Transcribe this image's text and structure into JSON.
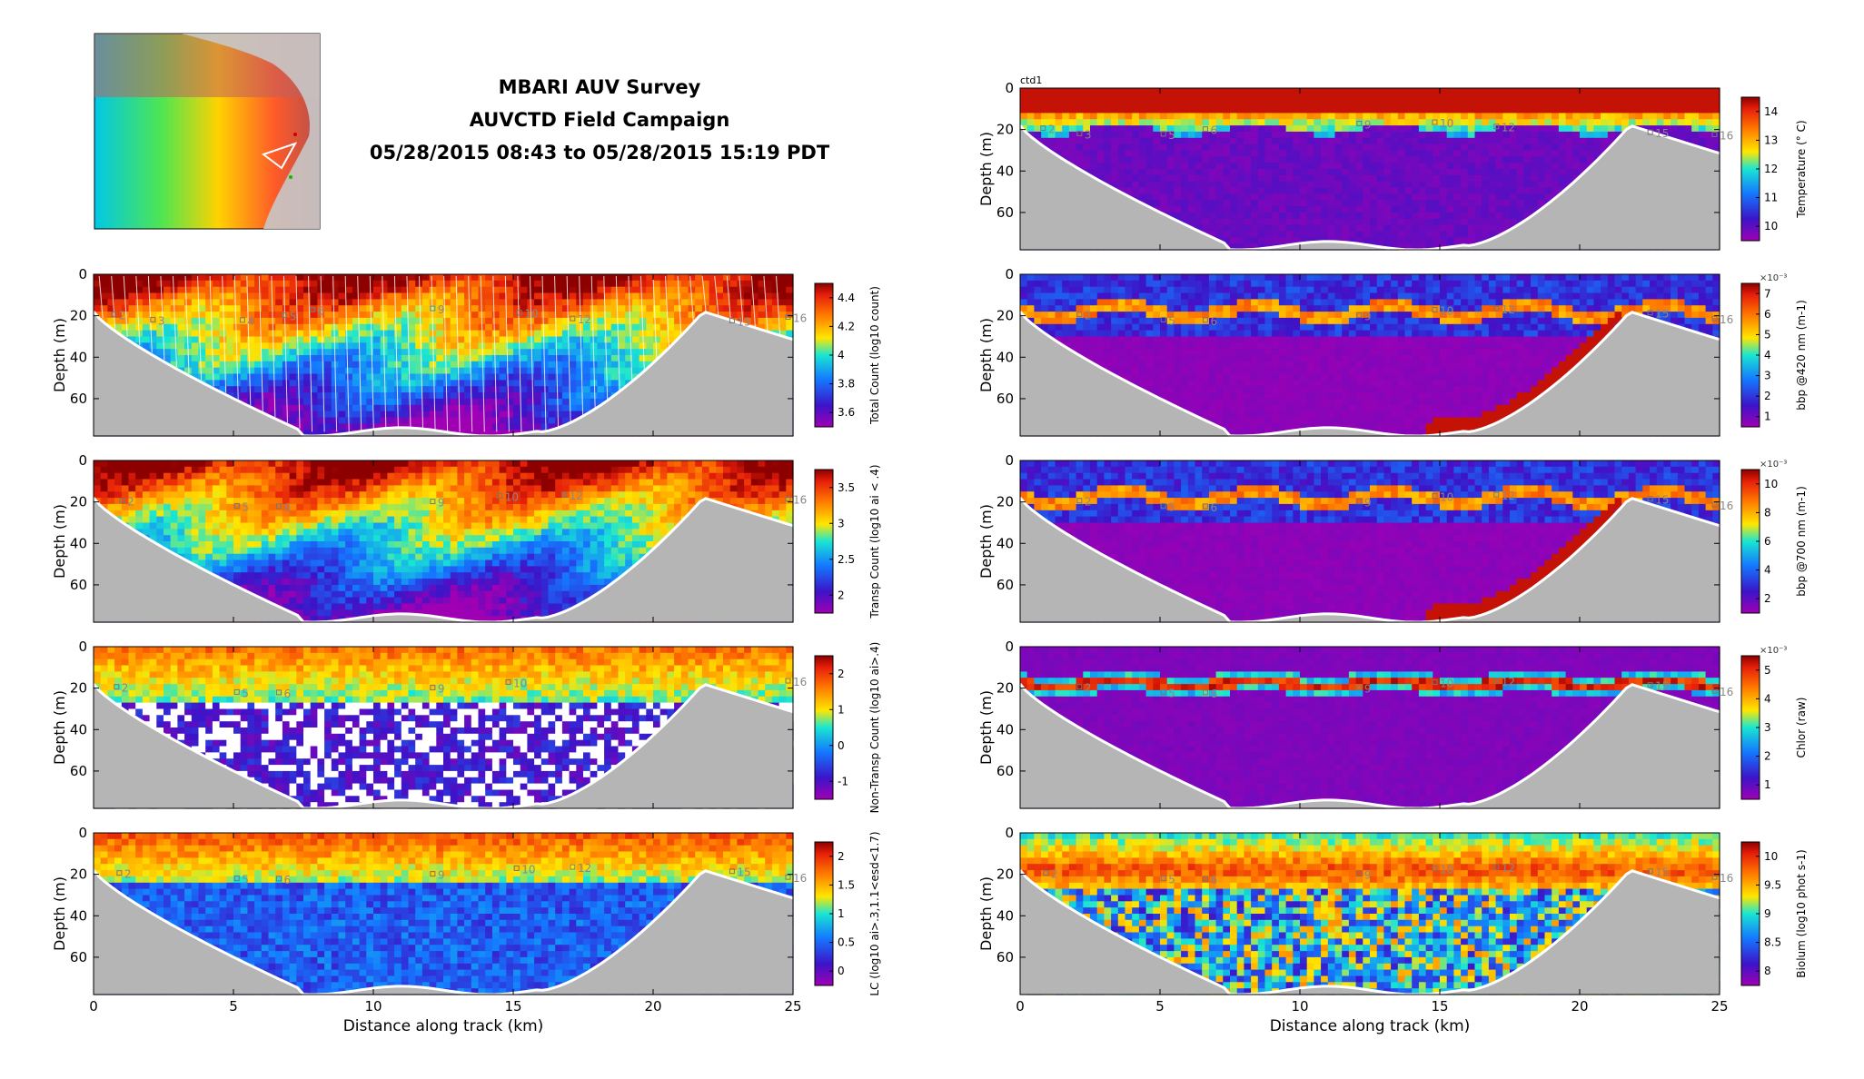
{
  "title_lines": [
    "MBARI AUV Survey",
    "AUVCTD Field Campaign",
    "05/28/2015 08:43 to 05/28/2015 15:19 PDT"
  ],
  "map_inset": {
    "icon": "bathymetry-map-icon"
  },
  "colors": {
    "bottom_fill": "#b5b5b5",
    "white": "#ffffff"
  },
  "chart_data": [
    {
      "type": "heatmap",
      "xlabel": "",
      "ylabel": "Depth (m)",
      "xlim": [
        0,
        25
      ],
      "ylim": [
        78,
        0
      ],
      "yticks": [
        0,
        20,
        40,
        60
      ],
      "xticks": [],
      "show_xtick_labels": false,
      "cbar_label": "Total Count (log10 count)",
      "cbar_ticks": [
        "3.6",
        "3.8",
        "4",
        "4.2",
        "4.4"
      ],
      "cbar_multiplier": "",
      "field": "count",
      "track_lines": true,
      "annotations": [
        "2",
        "3",
        "4",
        "5",
        "6",
        "9",
        "10",
        "12",
        "15",
        "16"
      ],
      "ann_x_km": [
        0.9,
        2.3,
        5.5,
        7.0,
        8.0,
        12.3,
        15.4,
        17.3,
        23.0,
        25.0
      ]
    },
    {
      "type": "heatmap",
      "xlabel": "",
      "ylabel": "Depth (m)",
      "xlim": [
        0,
        25
      ],
      "ylim": [
        78,
        0
      ],
      "yticks": [
        0,
        20,
        40,
        60
      ],
      "xticks": [],
      "show_xtick_labels": false,
      "cbar_label": "Transp Count (log10 ai < .4)",
      "cbar_ticks": [
        "2",
        "2.5",
        "3",
        "3.5"
      ],
      "cbar_multiplier": "",
      "field": "count",
      "annotations": [
        "2",
        "5",
        "6",
        "9",
        "10",
        "12",
        "16"
      ],
      "ann_x_km": [
        1.2,
        5.3,
        6.8,
        12.3,
        14.7,
        17.0,
        25.0
      ]
    },
    {
      "type": "heatmap",
      "xlabel": "",
      "ylabel": "Depth (m)",
      "xlim": [
        0,
        25
      ],
      "ylim": [
        78,
        0
      ],
      "yticks": [
        0,
        20,
        40,
        60
      ],
      "xticks": [],
      "show_xtick_labels": false,
      "cbar_label": "Non-Transp Count (log10 ai>.4)",
      "cbar_ticks": [
        "-1",
        "0",
        "1",
        "2"
      ],
      "cbar_multiplier": "",
      "field": "nontransp",
      "annotations": [
        "2",
        "5",
        "6",
        "9",
        "10",
        "16"
      ],
      "ann_x_km": [
        1.0,
        5.3,
        6.8,
        12.3,
        15.0,
        25.0
      ]
    },
    {
      "type": "heatmap",
      "xlabel": "Distance along track (km)",
      "ylabel": "Depth (m)",
      "xlim": [
        0,
        25
      ],
      "ylim": [
        78,
        0
      ],
      "yticks": [
        0,
        20,
        40,
        60
      ],
      "xticks": [
        0,
        5,
        10,
        15,
        20,
        25
      ],
      "show_xtick_labels": true,
      "cbar_label": "LC (log10 ai>.3,1.1<esd<1.7)",
      "cbar_ticks": [
        "0",
        "0.5",
        "1",
        "1.5",
        "2"
      ],
      "cbar_multiplier": "",
      "field": "lc",
      "annotations": [
        "2",
        "5",
        "6",
        "9",
        "10",
        "12",
        "15",
        "16"
      ],
      "ann_x_km": [
        1.1,
        5.3,
        6.8,
        12.3,
        15.3,
        17.3,
        23.0,
        25.0
      ]
    },
    {
      "type": "heatmap",
      "xlabel": "",
      "ylabel": "Depth (m)",
      "xlim": [
        0,
        25
      ],
      "ylim": [
        78,
        0
      ],
      "yticks": [
        0,
        20,
        40,
        60
      ],
      "xticks": [],
      "show_xtick_labels": false,
      "panel_label": "ctd1",
      "cbar_label": "Temperature (° C)",
      "cbar_ticks": [
        "10",
        "11",
        "12",
        "13",
        "14"
      ],
      "cbar_multiplier": "",
      "field": "temp",
      "annotations": [
        "2",
        "3",
        "5",
        "6",
        "9",
        "10",
        "12",
        "15",
        "16"
      ],
      "ann_x_km": [
        1.0,
        2.3,
        5.3,
        6.8,
        12.3,
        15.0,
        17.2,
        22.7,
        25.0
      ]
    },
    {
      "type": "heatmap",
      "xlabel": "",
      "ylabel": "Depth (m)",
      "xlim": [
        0,
        25
      ],
      "ylim": [
        78,
        0
      ],
      "yticks": [
        0,
        20,
        40,
        60
      ],
      "xticks": [],
      "show_xtick_labels": false,
      "cbar_label": "bbp @420 nm (m-1)",
      "cbar_ticks": [
        "1",
        "2",
        "3",
        "4",
        "5",
        "6",
        "7"
      ],
      "cbar_multiplier": "×10⁻³",
      "field": "bbp",
      "deep_streak": true,
      "annotations": [
        "2",
        "5",
        "6",
        "9",
        "10",
        "12",
        "15",
        "16"
      ],
      "ann_x_km": [
        2.3,
        5.3,
        6.8,
        12.3,
        15.0,
        17.2,
        22.7,
        25.0
      ]
    },
    {
      "type": "heatmap",
      "xlabel": "",
      "ylabel": "Depth (m)",
      "xlim": [
        0,
        25
      ],
      "ylim": [
        78,
        0
      ],
      "yticks": [
        0,
        20,
        40,
        60
      ],
      "xticks": [],
      "show_xtick_labels": false,
      "cbar_label": "bbp @700 nm (m-1)",
      "cbar_ticks": [
        "2",
        "4",
        "6",
        "8",
        "10"
      ],
      "cbar_multiplier": "×10⁻³",
      "field": "bbp",
      "deep_streak": true,
      "annotations": [
        "2",
        "5",
        "6",
        "9",
        "10",
        "12",
        "15",
        "16"
      ],
      "ann_x_km": [
        2.3,
        5.3,
        6.8,
        12.3,
        15.0,
        17.2,
        22.7,
        25.0
      ]
    },
    {
      "type": "heatmap",
      "xlabel": "",
      "ylabel": "Depth (m)",
      "xlim": [
        0,
        25
      ],
      "ylim": [
        78,
        0
      ],
      "yticks": [
        0,
        20,
        40,
        60
      ],
      "xticks": [],
      "show_xtick_labels": false,
      "cbar_label": "Chlor (raw)",
      "cbar_ticks": [
        "1",
        "2",
        "3",
        "4",
        "5"
      ],
      "cbar_multiplier": "×10⁻³",
      "field": "chl",
      "annotations": [
        "2",
        "5",
        "6",
        "9",
        "10",
        "12",
        "15",
        "16"
      ],
      "ann_x_km": [
        2.3,
        5.3,
        6.8,
        12.3,
        15.0,
        17.2,
        22.7,
        25.0
      ]
    },
    {
      "type": "heatmap",
      "xlabel": "Distance along track (km)",
      "ylabel": "Depth (m)",
      "xlim": [
        0,
        25
      ],
      "ylim": [
        78,
        0
      ],
      "yticks": [
        0,
        20,
        40,
        60
      ],
      "xticks": [
        0,
        5,
        10,
        15,
        20,
        25
      ],
      "show_xtick_labels": true,
      "cbar_label": "Biolum (log10 phot s-1)",
      "cbar_ticks": [
        "8",
        "8.5",
        "9",
        "9.5",
        "10"
      ],
      "cbar_multiplier": "",
      "field": "biolum",
      "annotations": [
        "2",
        "5",
        "6",
        "9",
        "10",
        "12",
        "15",
        "16"
      ],
      "ann_x_km": [
        1.1,
        5.3,
        6.8,
        12.3,
        15.0,
        17.2,
        22.7,
        25.0
      ]
    }
  ]
}
